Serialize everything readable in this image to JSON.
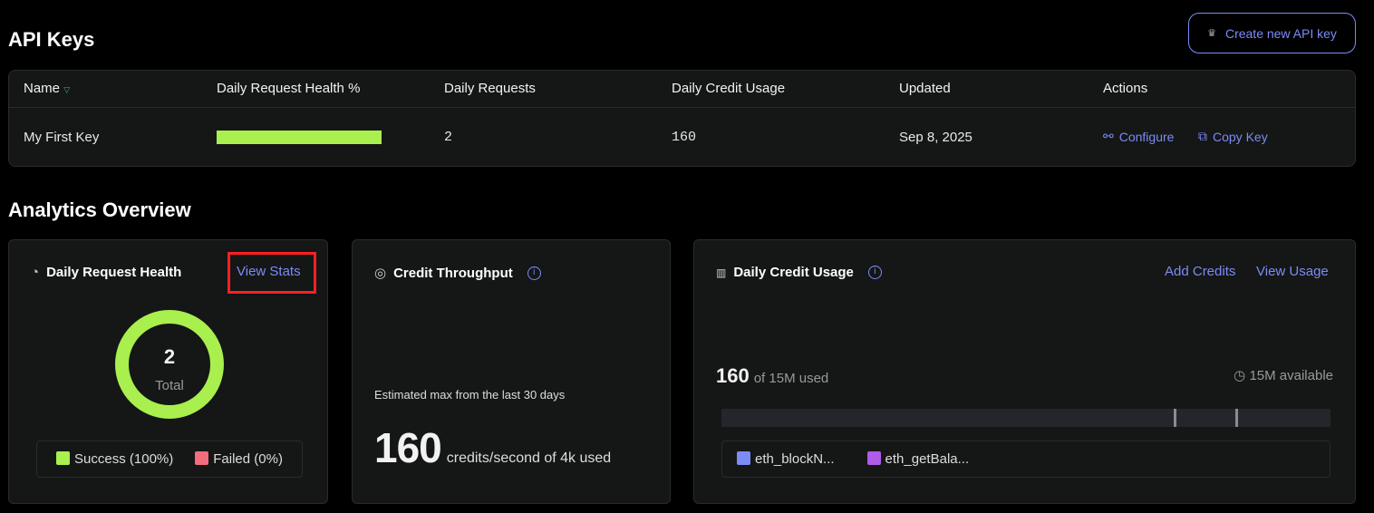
{
  "header": {
    "title": "API Keys",
    "create_button": "Create new API key"
  },
  "table": {
    "columns": [
      "Name",
      "Daily Request Health %",
      "Daily Requests",
      "Daily Credit Usage",
      "Updated",
      "Actions"
    ],
    "rows": [
      {
        "name": "My First Key",
        "health_percent": 100,
        "daily_requests": "2",
        "daily_credit_usage": "160",
        "updated": "Sep 8, 2025",
        "actions": [
          "Configure",
          "Copy Key"
        ]
      }
    ]
  },
  "analytics": {
    "title": "Analytics Overview",
    "health": {
      "title": "Daily Request Health",
      "view_stats": "View Stats",
      "total": "2",
      "total_label": "Total",
      "legend": [
        {
          "label": "Success (100%)",
          "color": "#a9ef4e"
        },
        {
          "label": "Failed (0%)",
          "color": "#f26d7d"
        }
      ],
      "success_fraction": 1.0
    },
    "throughput": {
      "title": "Credit Throughput",
      "caption": "Estimated max from the last 30 days",
      "value": "160",
      "unit": "credits/second of 4k used"
    },
    "usage": {
      "title": "Daily Credit Usage",
      "add_credits": "Add Credits",
      "view_usage": "View Usage",
      "used": "160",
      "of_text": "of 15M used",
      "available": "15M available",
      "legend": [
        {
          "label": "eth_blockN...",
          "color": "#7b8cf7"
        },
        {
          "label": "eth_getBala...",
          "color": "#b05ce8"
        }
      ]
    }
  },
  "colors": {
    "accent": "#7b8cf7",
    "success": "#a9ef4e",
    "failed": "#f26d7d",
    "highlight": "#ff2020"
  }
}
